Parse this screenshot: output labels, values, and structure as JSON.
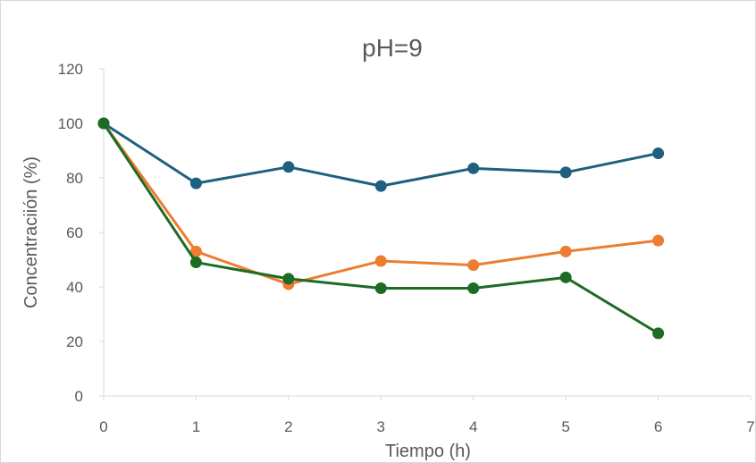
{
  "chart_data": {
    "type": "line",
    "title": "pH=9",
    "xlabel": "Tiempo (h)",
    "ylabel": "Concentraciión (%)",
    "xlim": [
      0,
      7
    ],
    "ylim": [
      0,
      120
    ],
    "xticks": [
      0,
      1,
      2,
      3,
      4,
      5,
      6,
      7
    ],
    "yticks": [
      0,
      20,
      40,
      60,
      80,
      100,
      120
    ],
    "grid": false,
    "legend": "none",
    "x": [
      0,
      1,
      2,
      3,
      4,
      5,
      6
    ],
    "series": [
      {
        "color": "#1f5f7f",
        "values": [
          100,
          78,
          84,
          77,
          83.5,
          82,
          89
        ]
      },
      {
        "color": "#ed7d31",
        "values": [
          100,
          53,
          41,
          49.5,
          48,
          53,
          57
        ]
      },
      {
        "color": "#1e6b24",
        "values": [
          100,
          49,
          43,
          39.5,
          39.5,
          43.5,
          23
        ]
      }
    ]
  }
}
